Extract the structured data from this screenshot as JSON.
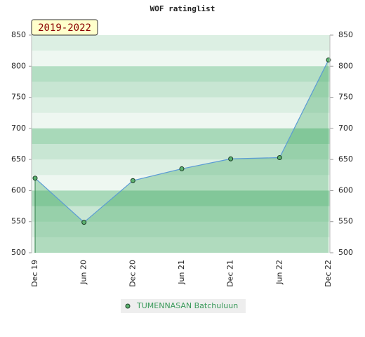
{
  "chart_data": {
    "type": "line",
    "title": "WOF ratinglist",
    "annotation": "2019-2022",
    "categories": [
      "Dec 19",
      "Jun 20",
      "Dec 20",
      "Jun 21",
      "Dec 21",
      "Jun 22",
      "Dec 22"
    ],
    "series": [
      {
        "name": "TUMENNASAN Batchuluun",
        "color": "#5cb270",
        "line_color": "#5b9bd5",
        "values": [
          620,
          549,
          616,
          635,
          651,
          653,
          810
        ]
      }
    ],
    "ylim": [
      500,
      850
    ],
    "yticks": [
      500,
      550,
      600,
      650,
      700,
      750,
      800,
      850
    ],
    "y2lim": [
      500,
      850
    ],
    "y2ticks": [
      500,
      550,
      600,
      650,
      700,
      750,
      800,
      850
    ],
    "area": true,
    "legend": "bottom"
  }
}
